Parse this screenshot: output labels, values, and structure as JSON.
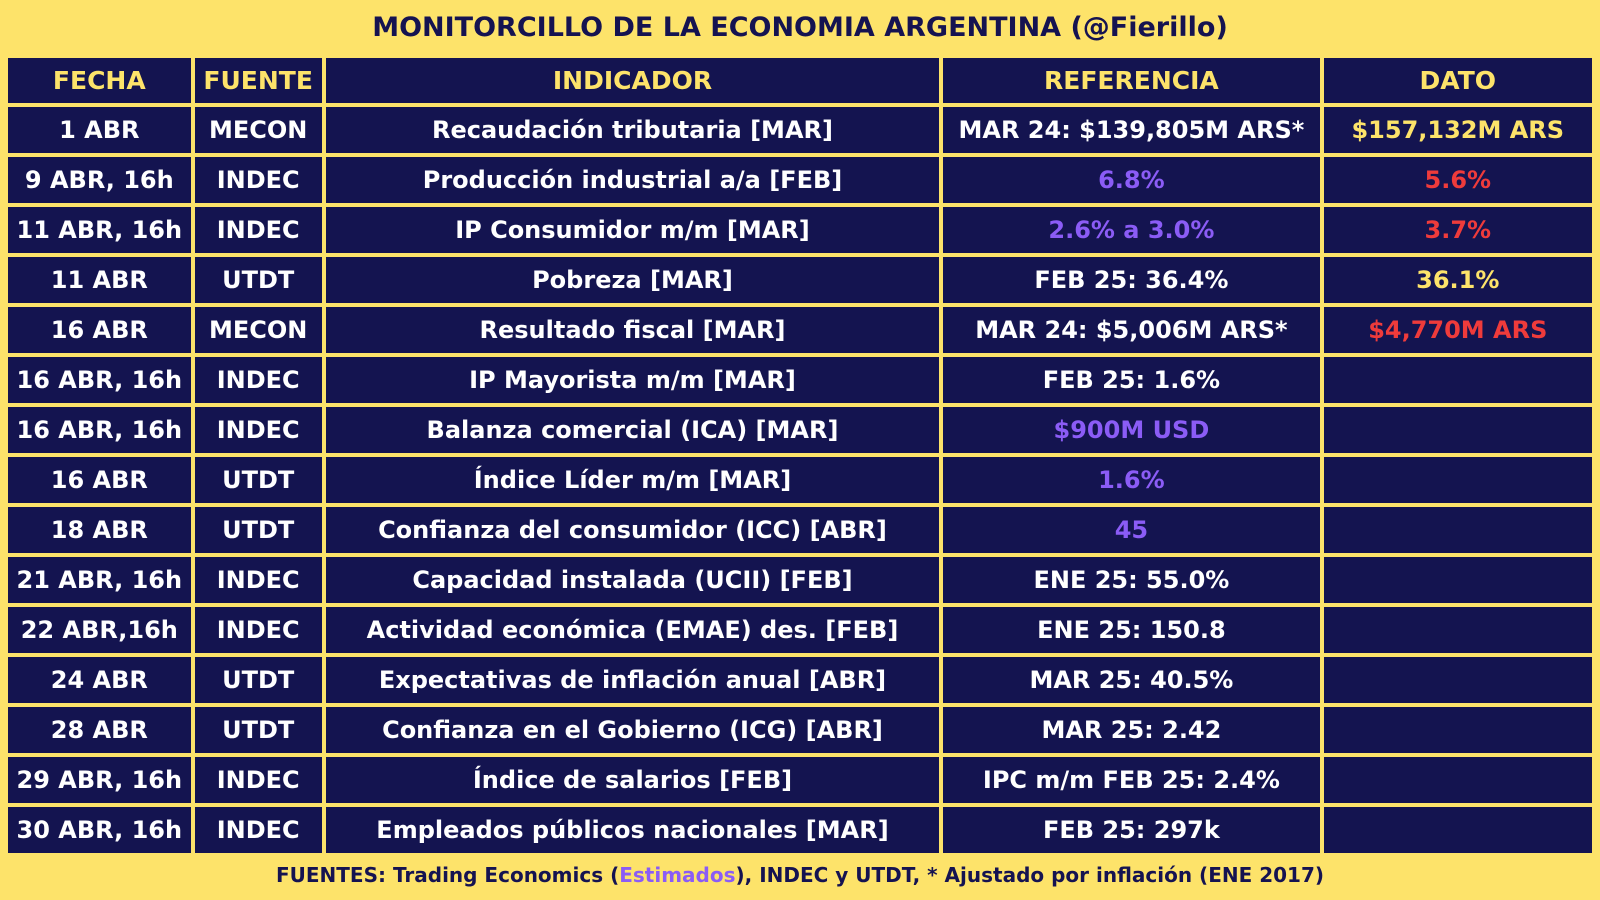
{
  "title": "MONITORCILLO DE LA ECONOMIA ARGENTINA (@Fierillo)",
  "colors": {
    "background": "#fde36a",
    "cell": "#141450",
    "header_text": "#fde36a",
    "estimate": "#8b5cf6",
    "miss": "#ef3b3b",
    "hit": "#fde36a"
  },
  "table": {
    "headers": [
      "FECHA",
      "FUENTE",
      "INDICADOR",
      "REFERENCIA",
      "DATO"
    ],
    "rows": [
      {
        "fecha": "1 ABR",
        "fuente": "MECON",
        "indicador": "Recaudación tributaria [MAR]",
        "referencia": "MAR 24: $139,805M ARS*",
        "referencia_color": "white",
        "dato": "$157,132M ARS",
        "dato_color": "yellow"
      },
      {
        "fecha": "9 ABR, 16h",
        "fuente": "INDEC",
        "indicador": "Producción industrial a/a [FEB]",
        "referencia": "6.8%",
        "referencia_color": "purple",
        "dato": "5.6%",
        "dato_color": "red"
      },
      {
        "fecha": "11 ABR, 16h",
        "fuente": "INDEC",
        "indicador": "IP Consumidor m/m [MAR]",
        "referencia": "2.6% a 3.0%",
        "referencia_color": "purple",
        "dato": "3.7%",
        "dato_color": "red"
      },
      {
        "fecha": "11 ABR",
        "fuente": "UTDT",
        "indicador": "Pobreza [MAR]",
        "referencia": "FEB 25: 36.4%",
        "referencia_color": "white",
        "dato": "36.1%",
        "dato_color": "yellow"
      },
      {
        "fecha": "16 ABR",
        "fuente": "MECON",
        "indicador": "Resultado fiscal [MAR]",
        "referencia": "MAR 24: $5,006M ARS*",
        "referencia_color": "white",
        "dato": "$4,770M ARS",
        "dato_color": "red"
      },
      {
        "fecha": "16 ABR, 16h",
        "fuente": "INDEC",
        "indicador": "IP Mayorista m/m [MAR]",
        "referencia": "FEB 25: 1.6%",
        "referencia_color": "white",
        "dato": "",
        "dato_color": "white"
      },
      {
        "fecha": "16 ABR, 16h",
        "fuente": "INDEC",
        "indicador": "Balanza comercial (ICA) [MAR]",
        "referencia": "$900M USD",
        "referencia_color": "purple",
        "dato": "",
        "dato_color": "white"
      },
      {
        "fecha": "16 ABR",
        "fuente": "UTDT",
        "indicador": "Índice Líder m/m [MAR]",
        "referencia": "1.6%",
        "referencia_color": "purple",
        "dato": "",
        "dato_color": "white"
      },
      {
        "fecha": "18 ABR",
        "fuente": "UTDT",
        "indicador": "Confianza del consumidor (ICC) [ABR]",
        "referencia": "45",
        "referencia_color": "purple",
        "dato": "",
        "dato_color": "white"
      },
      {
        "fecha": "21 ABR, 16h",
        "fuente": "INDEC",
        "indicador": "Capacidad instalada (UCII) [FEB]",
        "referencia": "ENE 25: 55.0%",
        "referencia_color": "white",
        "dato": "",
        "dato_color": "white"
      },
      {
        "fecha": "22 ABR,16h",
        "fuente": "INDEC",
        "indicador": "Actividad económica (EMAE) des. [FEB]",
        "referencia": "ENE 25: 150.8",
        "referencia_color": "white",
        "dato": "",
        "dato_color": "white"
      },
      {
        "fecha": "24 ABR",
        "fuente": "UTDT",
        "indicador": "Expectativas de inflación anual [ABR]",
        "referencia": "MAR 25: 40.5%",
        "referencia_color": "white",
        "dato": "",
        "dato_color": "white"
      },
      {
        "fecha": "28 ABR",
        "fuente": "UTDT",
        "indicador": "Confianza en el Gobierno (ICG) [ABR]",
        "referencia": "MAR 25: 2.42",
        "referencia_color": "white",
        "dato": "",
        "dato_color": "white"
      },
      {
        "fecha": "29 ABR, 16h",
        "fuente": "INDEC",
        "indicador": "Índice de salarios [FEB]",
        "referencia": "IPC m/m FEB 25: 2.4%",
        "referencia_color": "white",
        "dato": "",
        "dato_color": "white"
      },
      {
        "fecha": "30 ABR, 16h",
        "fuente": "INDEC",
        "indicador": "Empleados públicos nacionales [MAR]",
        "referencia": "FEB 25: 297k",
        "referencia_color": "white",
        "dato": "",
        "dato_color": "white"
      }
    ]
  },
  "footer": {
    "prefix": "FUENTES: Trading Economics (",
    "estimados": "Estimados",
    "suffix": "), INDEC y UTDT, * Ajustado por inflación (ENE 2017)"
  }
}
